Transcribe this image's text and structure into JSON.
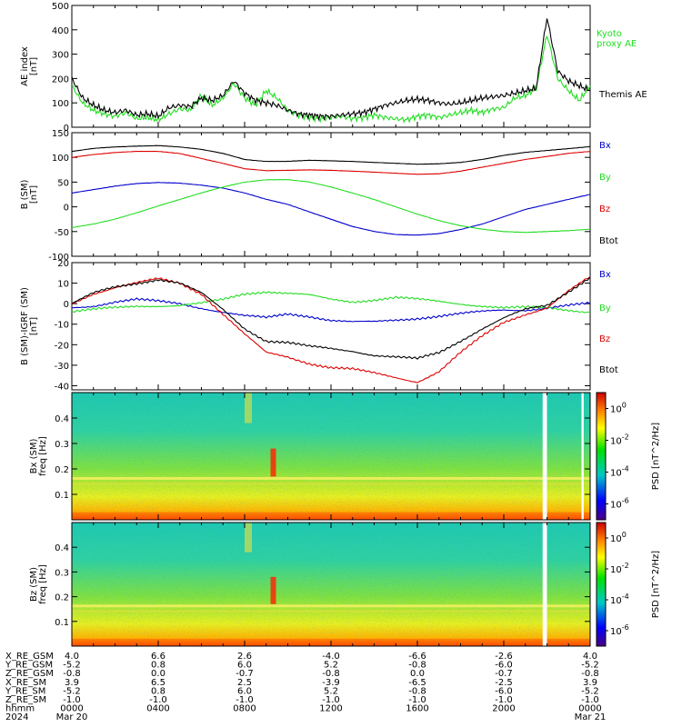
{
  "chart_data": [
    {
      "type": "line",
      "panel": "ae",
      "ylabel": "AE index",
      "yunit": "[nT]",
      "ylim": [
        0,
        500
      ],
      "yticks": [
        0,
        100,
        200,
        300,
        400,
        500
      ],
      "xlim_hours": [
        0,
        24
      ],
      "series": [
        {
          "name": "Kyoto proxy AE",
          "color": "#22dd22",
          "x": [
            0,
            0.5,
            1,
            1.5,
            2,
            2.5,
            3,
            3.5,
            4,
            4.5,
            5,
            5.5,
            6,
            6.5,
            7,
            7.5,
            8,
            8.5,
            9,
            9.5,
            10,
            10.5,
            11,
            11.5,
            12,
            12.5,
            13,
            13.5,
            14,
            14.5,
            15,
            15.5,
            16,
            16.5,
            17,
            17.5,
            18,
            18.5,
            19,
            19.5,
            20,
            20.5,
            21,
            21.5,
            22,
            22.5,
            23,
            23.5,
            24
          ],
          "y": [
            170,
            100,
            70,
            55,
            45,
            60,
            35,
            40,
            30,
            55,
            75,
            70,
            130,
            90,
            120,
            180,
            120,
            90,
            150,
            120,
            70,
            50,
            40,
            35,
            40,
            45,
            35,
            40,
            50,
            40,
            35,
            30,
            45,
            50,
            40,
            50,
            60,
            70,
            60,
            75,
            80,
            120,
            130,
            160,
            380,
            200,
            150,
            110,
            170
          ]
        },
        {
          "name": "Themis AE",
          "color": "#000000",
          "x": [
            0,
            0.5,
            1,
            1.5,
            2,
            2.5,
            3,
            3.5,
            4,
            4.5,
            5,
            5.5,
            6,
            6.5,
            7,
            7.5,
            8,
            8.5,
            9,
            9.5,
            10,
            10.5,
            11,
            11.5,
            12,
            12.5,
            13,
            13.5,
            14,
            14.5,
            15,
            15.5,
            16,
            16.5,
            17,
            17.5,
            18,
            18.5,
            19,
            19.5,
            20,
            20.5,
            21,
            21.5,
            22,
            22.5,
            23,
            23.5,
            24
          ],
          "y": [
            200,
            120,
            90,
            70,
            60,
            70,
            50,
            55,
            45,
            80,
            90,
            85,
            120,
            110,
            130,
            190,
            140,
            110,
            100,
            90,
            70,
            55,
            50,
            45,
            45,
            50,
            55,
            60,
            75,
            90,
            100,
            110,
            115,
            110,
            100,
            95,
            100,
            110,
            120,
            125,
            130,
            140,
            150,
            160,
            450,
            230,
            190,
            170,
            150
          ]
        }
      ]
    },
    {
      "type": "line",
      "panel": "b_sm",
      "ylabel": "B (SM)",
      "yunit": "[nT]",
      "ylim": [
        -100,
        150
      ],
      "yticks": [
        -100,
        -50,
        0,
        50,
        100,
        150
      ],
      "xlim_hours": [
        0,
        24
      ],
      "series": [
        {
          "name": "Bx",
          "color": "#0000cc",
          "x": [
            0,
            1,
            2,
            3,
            4,
            5,
            6,
            7,
            8,
            9,
            10,
            11,
            12,
            13,
            14,
            15,
            16,
            17,
            18,
            19,
            20,
            21,
            22,
            23,
            24
          ],
          "y": [
            28,
            35,
            42,
            47,
            49,
            48,
            44,
            38,
            28,
            15,
            5,
            -10,
            -25,
            -40,
            -50,
            -56,
            -57,
            -54,
            -46,
            -35,
            -20,
            -5,
            5,
            15,
            25
          ]
        },
        {
          "name": "By",
          "color": "#22dd22",
          "x": [
            0,
            1,
            2,
            3,
            4,
            5,
            6,
            7,
            8,
            9,
            10,
            11,
            12,
            13,
            14,
            15,
            16,
            17,
            18,
            19,
            20,
            21,
            22,
            23,
            24
          ],
          "y": [
            -42,
            -35,
            -25,
            -12,
            2,
            15,
            28,
            40,
            50,
            55,
            55,
            50,
            40,
            28,
            15,
            0,
            -15,
            -28,
            -38,
            -45,
            -50,
            -52,
            -50,
            -48,
            -45
          ]
        },
        {
          "name": "Bz",
          "color": "#dd0000",
          "x": [
            0,
            1,
            2,
            3,
            4,
            5,
            6,
            7,
            8,
            9,
            10,
            11,
            12,
            13,
            14,
            15,
            16,
            17,
            18,
            19,
            20,
            21,
            22,
            23,
            24
          ],
          "y": [
            100,
            106,
            110,
            112,
            112,
            108,
            98,
            88,
            77,
            73,
            74,
            75,
            74,
            72,
            70,
            68,
            66,
            67,
            72,
            80,
            88,
            96,
            102,
            108,
            112
          ]
        },
        {
          "name": "Btot",
          "color": "#000000",
          "x": [
            0,
            1,
            2,
            3,
            4,
            5,
            6,
            7,
            8,
            9,
            10,
            11,
            12,
            13,
            14,
            15,
            16,
            17,
            18,
            19,
            20,
            21,
            22,
            23,
            24
          ],
          "y": [
            112,
            118,
            121,
            123,
            124,
            121,
            116,
            108,
            96,
            92,
            92,
            94,
            93,
            92,
            90,
            88,
            86,
            87,
            90,
            96,
            104,
            110,
            114,
            118,
            122
          ]
        }
      ]
    },
    {
      "type": "line",
      "panel": "b_minus_igrf",
      "ylabel": "B (SM)-IGRF (SM)",
      "yunit": "[nT]",
      "ylim": [
        -42,
        20
      ],
      "yticks": [
        -40,
        -30,
        -20,
        -10,
        0,
        10,
        20
      ],
      "xlim_hours": [
        0,
        24
      ],
      "series": [
        {
          "name": "Bx",
          "color": "#0000cc",
          "x": [
            0,
            1,
            2,
            3,
            4,
            5,
            6,
            7,
            8,
            9,
            10,
            11,
            12,
            13,
            14,
            15,
            16,
            17,
            18,
            19,
            20,
            21,
            22,
            23,
            24
          ],
          "y": [
            -2,
            -1,
            1,
            2,
            1,
            0,
            -2,
            -4,
            -6,
            -7,
            -5,
            -6,
            -8,
            -9,
            -9,
            -8,
            -7,
            -6,
            -5,
            -4,
            -3,
            -3,
            -2,
            -1,
            0
          ]
        },
        {
          "name": "By",
          "color": "#22dd22",
          "x": [
            0,
            1,
            2,
            3,
            4,
            5,
            6,
            7,
            8,
            9,
            10,
            11,
            12,
            13,
            14,
            15,
            16,
            17,
            18,
            19,
            20,
            21,
            22,
            23,
            24
          ],
          "y": [
            -4,
            -3,
            -2,
            -1,
            -1,
            -1,
            0,
            2,
            5,
            6,
            5,
            4,
            2,
            1,
            2,
            3,
            2,
            1,
            0,
            -1,
            -2,
            -2,
            -2,
            -3,
            -4
          ]
        },
        {
          "name": "Bz",
          "color": "#dd0000",
          "x": [
            0,
            1,
            2,
            3,
            4,
            5,
            6,
            7,
            8,
            9,
            10,
            11,
            12,
            13,
            14,
            15,
            16,
            17,
            18,
            19,
            20,
            21,
            22,
            23,
            24
          ],
          "y": [
            0,
            5,
            8,
            10,
            12,
            10,
            5,
            -5,
            -15,
            -24,
            -26,
            -29,
            -31,
            -32,
            -34,
            -36,
            -38,
            -33,
            -24,
            -16,
            -9,
            -5,
            -2,
            6,
            13
          ]
        },
        {
          "name": "Btot",
          "color": "#000000",
          "x": [
            0,
            1,
            2,
            3,
            4,
            5,
            6,
            7,
            8,
            9,
            10,
            11,
            12,
            13,
            14,
            15,
            16,
            17,
            18,
            19,
            20,
            21,
            22,
            23,
            24
          ],
          "y": [
            0,
            5,
            8,
            10,
            12,
            10,
            5,
            -3,
            -12,
            -18,
            -19,
            -21,
            -22,
            -23,
            -25,
            -26,
            -27,
            -24,
            -18,
            -12,
            -7,
            -3,
            -1,
            6,
            13
          ]
        }
      ]
    },
    {
      "type": "heatmap",
      "panel": "bx_spectrogram",
      "ylabel": "Bx (SM)",
      "ylabel2": "freq",
      "yunit": "[Hz]",
      "ylim": [
        0,
        0.5
      ],
      "yticks": [
        0.1,
        0.2,
        0.3,
        0.4
      ],
      "colorbar_label": "PSD [nT^2/Hz]",
      "colorbar_ticks": [
        "10^0",
        "10^-2",
        "10^-4",
        "10^-6"
      ],
      "colorbar_exponents": [
        0,
        -2,
        -4,
        -6
      ],
      "data_gaps_hours": [
        [
          21.8,
          22.0
        ],
        [
          23.6,
          23.7
        ]
      ]
    },
    {
      "type": "heatmap",
      "panel": "bz_spectrogram",
      "ylabel": "Bz (SM)",
      "ylabel2": "freq",
      "yunit": "[Hz]",
      "ylim": [
        0,
        0.5
      ],
      "yticks": [
        0.1,
        0.2,
        0.3,
        0.4
      ],
      "colorbar_label": "PSD [nT^2/Hz]",
      "colorbar_ticks": [
        "10^0",
        "10^-2",
        "10^-4",
        "10^-6"
      ],
      "colorbar_exponents": [
        0,
        -2,
        -4,
        -6
      ],
      "data_gaps_hours": [
        [
          21.8,
          22.0
        ]
      ]
    }
  ],
  "legend_ae": [
    "Kyoto",
    "proxy AE",
    "Themis AE"
  ],
  "legend_b": [
    "Bx",
    "By",
    "Bz",
    "Btot"
  ],
  "colors": {
    "bx": "#0000cc",
    "by": "#22dd22",
    "bz": "#dd0000",
    "btot": "#000000"
  },
  "x_axis": {
    "rows": [
      {
        "label": "X_RE_GSM",
        "values": [
          "4.0",
          "6.6",
          "2.6",
          "-4.0",
          "-6.6",
          "-2.6",
          "4.0"
        ]
      },
      {
        "label": "Y_RE_GSM",
        "values": [
          "-5.2",
          "0.8",
          "6.0",
          "5.2",
          "-0.8",
          "-6.0",
          "-5.2"
        ]
      },
      {
        "label": "Z_RE_GSM",
        "values": [
          "-0.8",
          "0.0",
          "-0.7",
          "-0.8",
          "0.0",
          "-0.7",
          "-0.8"
        ]
      },
      {
        "label": "X_RE_SM",
        "values": [
          "3.9",
          "6.5",
          "2.5",
          "-3.9",
          "-6.5",
          "-2.5",
          "3.9"
        ]
      },
      {
        "label": "Y_RE_SM",
        "values": [
          "-5.2",
          "0.8",
          "6.0",
          "5.2",
          "-0.8",
          "-6.0",
          "-5.2"
        ]
      },
      {
        "label": "Z_RE_SM",
        "values": [
          "-1.0",
          "-1.0",
          "-1.0",
          "-1.0",
          "-1.0",
          "-1.0",
          "-1.0"
        ]
      },
      {
        "label": "hhmm",
        "values": [
          "0000",
          "0400",
          "0800",
          "1200",
          "1600",
          "2000",
          "0000"
        ]
      },
      {
        "label": "2024",
        "values": [
          "Mar 20",
          "",
          "",
          "",
          "",
          "",
          "Mar 21"
        ]
      }
    ]
  }
}
